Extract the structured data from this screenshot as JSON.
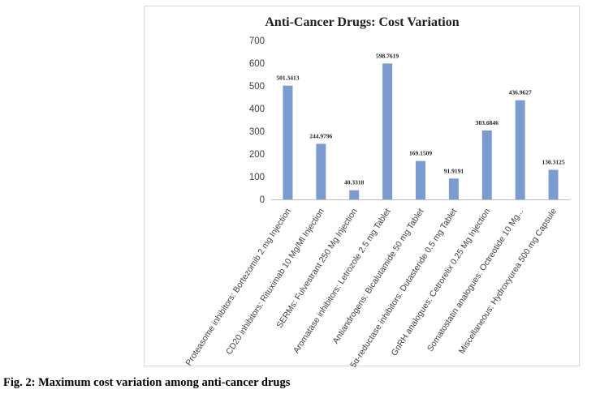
{
  "chart_data": {
    "type": "bar",
    "title": "Anti-Cancer Drugs: Cost Variation",
    "categories": [
      "Proteasome inhibitors: Bortezomib 2 mg Injection",
      "CD20 inhibitors: Rituximab 10 Mg/Ml Injection",
      "SERMs: Fulvestrant 250 Mg Injection",
      "Aromatase inhibitors: Letrozole 2.5 mg Tablet",
      "Antiandrogens: Bicalutamide 50 mg Tablet",
      "5α-reductase inhibitors: Dutasteride 0.5 mg Tablet",
      "GnRH analogues: Cetrorelix 0.25 Mg Injection",
      "Somatostatin analogues: Octreotide 10 Mg...",
      "Miscellaneous: Hydroxyurea 500 mg Capsule"
    ],
    "values": [
      501.3413,
      244.9796,
      40.3318,
      598.7619,
      169.1509,
      91.9191,
      303.6846,
      436.9627,
      130.3125
    ],
    "data_labels": [
      "501.3413",
      "244.9796",
      "40.3318",
      "598.7619",
      "169.1509",
      "91.9191",
      "303.6846",
      "436.9627",
      "130.3125"
    ],
    "yticks": [
      "0",
      "100",
      "200",
      "300",
      "400",
      "500",
      "600",
      "700"
    ],
    "ylim": [
      0,
      700
    ],
    "xlabel": "",
    "ylabel": "",
    "grid": false,
    "legend": "none",
    "bar_color": "#7b9cd0"
  },
  "caption": "Fig. 2: Maximum cost variation among anti-cancer drugs"
}
